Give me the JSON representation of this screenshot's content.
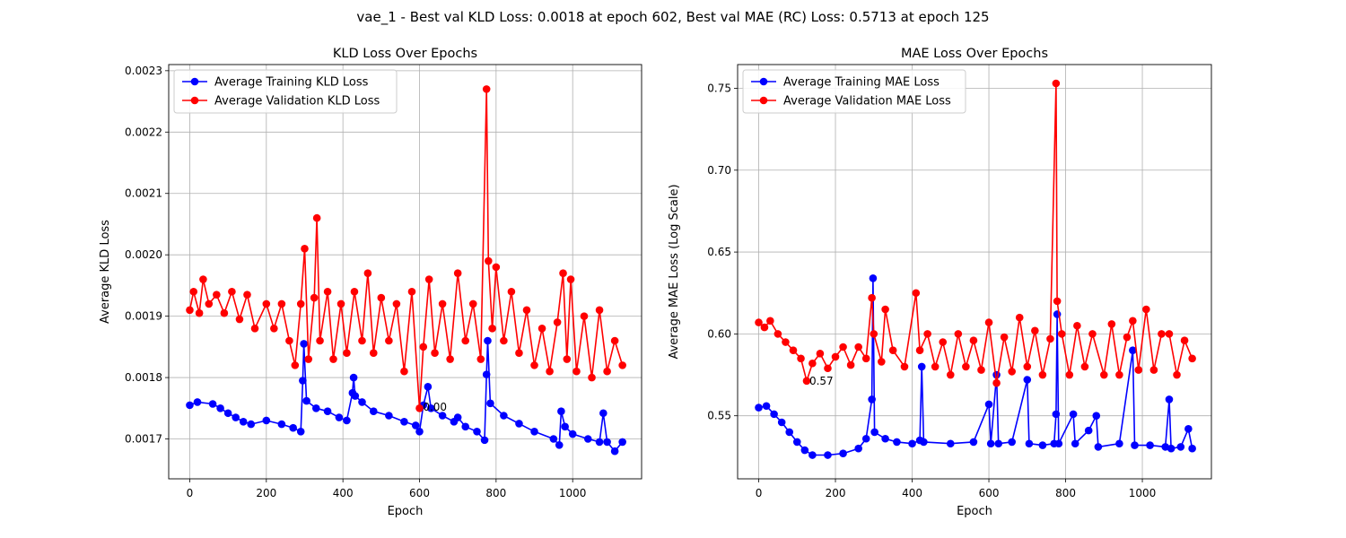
{
  "figure": {
    "suptitle": "vae_1 - Best val KLD Loss: 0.0018 at epoch 602, Best val MAE (RC) Loss: 0.5713 at epoch 125"
  },
  "chart_data": [
    {
      "type": "line",
      "title": "KLD Loss Over Epochs",
      "xlabel": "Epoch",
      "ylabel": "Average KLD Loss",
      "xlim": [
        -55,
        1180
      ],
      "ylim": [
        0.001635,
        0.00231
      ],
      "xticks": [
        0,
        200,
        400,
        600,
        800,
        1000
      ],
      "xtick_labels": [
        "0",
        "200",
        "400",
        "600",
        "800",
        "1000"
      ],
      "yticks": [
        0.0017,
        0.0018,
        0.0019,
        0.002,
        0.0021,
        0.0022,
        0.0023
      ],
      "ytick_labels": [
        "0.0017",
        "0.0018",
        "0.0019",
        "0.0020",
        "0.0021",
        "0.0022",
        "0.0023"
      ],
      "grid": true,
      "legend": "upper-left",
      "annotation": {
        "text": "0.00",
        "x": 602,
        "y": 0.001752
      },
      "series": [
        {
          "name": "Average Training KLD Loss",
          "color": "#0000ff",
          "marker": "circle",
          "points": [
            [
              0,
              0.001755
            ],
            [
              20,
              0.00176
            ],
            [
              60,
              0.001757
            ],
            [
              80,
              0.00175
            ],
            [
              100,
              0.001742
            ],
            [
              120,
              0.001735
            ],
            [
              140,
              0.001728
            ],
            [
              160,
              0.001724
            ],
            [
              200,
              0.00173
            ],
            [
              240,
              0.001724
            ],
            [
              270,
              0.001718
            ],
            [
              290,
              0.001712
            ],
            [
              295,
              0.001795
            ],
            [
              298,
              0.001855
            ],
            [
              305,
              0.001762
            ],
            [
              330,
              0.00175
            ],
            [
              360,
              0.001745
            ],
            [
              390,
              0.001735
            ],
            [
              410,
              0.00173
            ],
            [
              425,
              0.001775
            ],
            [
              428,
              0.0018
            ],
            [
              432,
              0.00177
            ],
            [
              450,
              0.00176
            ],
            [
              480,
              0.001745
            ],
            [
              520,
              0.001738
            ],
            [
              560,
              0.001728
            ],
            [
              590,
              0.001722
            ],
            [
              600,
              0.001712
            ],
            [
              610,
              0.001755
            ],
            [
              622,
              0.001785
            ],
            [
              630,
              0.00175
            ],
            [
              660,
              0.001738
            ],
            [
              690,
              0.001728
            ],
            [
              700,
              0.001735
            ],
            [
              720,
              0.00172
            ],
            [
              750,
              0.001712
            ],
            [
              770,
              0.001698
            ],
            [
              775,
              0.001805
            ],
            [
              778,
              0.00186
            ],
            [
              785,
              0.001758
            ],
            [
              820,
              0.001738
            ],
            [
              860,
              0.001725
            ],
            [
              900,
              0.001712
            ],
            [
              950,
              0.0017
            ],
            [
              965,
              0.00169
            ],
            [
              970,
              0.001745
            ],
            [
              980,
              0.00172
            ],
            [
              1000,
              0.001708
            ],
            [
              1040,
              0.0017
            ],
            [
              1070,
              0.001695
            ],
            [
              1080,
              0.001742
            ],
            [
              1090,
              0.001695
            ],
            [
              1110,
              0.00168
            ],
            [
              1130,
              0.001695
            ]
          ]
        },
        {
          "name": "Average Validation KLD Loss",
          "color": "#ff0000",
          "marker": "circle",
          "points": [
            [
              0,
              0.00191
            ],
            [
              10,
              0.00194
            ],
            [
              25,
              0.001905
            ],
            [
              35,
              0.00196
            ],
            [
              50,
              0.00192
            ],
            [
              70,
              0.001935
            ],
            [
              90,
              0.001905
            ],
            [
              110,
              0.00194
            ],
            [
              130,
              0.001895
            ],
            [
              150,
              0.001935
            ],
            [
              170,
              0.00188
            ],
            [
              200,
              0.00192
            ],
            [
              220,
              0.00188
            ],
            [
              240,
              0.00192
            ],
            [
              260,
              0.00186
            ],
            [
              275,
              0.00182
            ],
            [
              290,
              0.00192
            ],
            [
              300,
              0.00201
            ],
            [
              310,
              0.00183
            ],
            [
              325,
              0.00193
            ],
            [
              332,
              0.00206
            ],
            [
              340,
              0.00186
            ],
            [
              360,
              0.00194
            ],
            [
              375,
              0.00183
            ],
            [
              395,
              0.00192
            ],
            [
              410,
              0.00184
            ],
            [
              430,
              0.00194
            ],
            [
              450,
              0.00186
            ],
            [
              465,
              0.00197
            ],
            [
              480,
              0.00184
            ],
            [
              500,
              0.00193
            ],
            [
              520,
              0.00186
            ],
            [
              540,
              0.00192
            ],
            [
              560,
              0.00181
            ],
            [
              580,
              0.00194
            ],
            [
              600,
              0.00175
            ],
            [
              610,
              0.00185
            ],
            [
              625,
              0.00196
            ],
            [
              640,
              0.00184
            ],
            [
              660,
              0.00192
            ],
            [
              680,
              0.00183
            ],
            [
              700,
              0.00197
            ],
            [
              720,
              0.00186
            ],
            [
              740,
              0.00192
            ],
            [
              760,
              0.00183
            ],
            [
              775,
              0.00227
            ],
            [
              780,
              0.00199
            ],
            [
              790,
              0.00188
            ],
            [
              800,
              0.00198
            ],
            [
              820,
              0.00186
            ],
            [
              840,
              0.00194
            ],
            [
              860,
              0.00184
            ],
            [
              880,
              0.00191
            ],
            [
              900,
              0.00182
            ],
            [
              920,
              0.00188
            ],
            [
              940,
              0.00181
            ],
            [
              960,
              0.00189
            ],
            [
              975,
              0.00197
            ],
            [
              985,
              0.00183
            ],
            [
              995,
              0.00196
            ],
            [
              1010,
              0.00181
            ],
            [
              1030,
              0.0019
            ],
            [
              1050,
              0.0018
            ],
            [
              1070,
              0.00191
            ],
            [
              1090,
              0.00181
            ],
            [
              1110,
              0.00186
            ],
            [
              1130,
              0.00182
            ]
          ]
        }
      ]
    },
    {
      "type": "line",
      "title": "MAE Loss Over Epochs",
      "xlabel": "Epoch",
      "ylabel": "Average MAE Loss (Log Scale)",
      "xlim": [
        -55,
        1180
      ],
      "ylim": [
        0.5115,
        0.7645
      ],
      "xticks": [
        0,
        200,
        400,
        600,
        800,
        1000
      ],
      "xtick_labels": [
        "0",
        "200",
        "400",
        "600",
        "800",
        "1000"
      ],
      "yticks": [
        0.55,
        0.6,
        0.65,
        0.7,
        0.75
      ],
      "ytick_labels": [
        "0.55",
        "0.60",
        "0.65",
        "0.70",
        "0.75"
      ],
      "grid": true,
      "legend": "upper-left",
      "annotation": {
        "text": "0.57",
        "x": 125,
        "y": 0.5713
      },
      "series": [
        {
          "name": "Average Training MAE Loss",
          "color": "#0000ff",
          "marker": "circle",
          "points": [
            [
              0,
              0.555
            ],
            [
              20,
              0.556
            ],
            [
              40,
              0.551
            ],
            [
              60,
              0.546
            ],
            [
              80,
              0.54
            ],
            [
              100,
              0.534
            ],
            [
              120,
              0.529
            ],
            [
              140,
              0.526
            ],
            [
              180,
              0.526
            ],
            [
              220,
              0.527
            ],
            [
              260,
              0.53
            ],
            [
              280,
              0.536
            ],
            [
              295,
              0.56
            ],
            [
              298,
              0.634
            ],
            [
              302,
              0.54
            ],
            [
              330,
              0.536
            ],
            [
              360,
              0.534
            ],
            [
              400,
              0.533
            ],
            [
              420,
              0.535
            ],
            [
              425,
              0.58
            ],
            [
              430,
              0.534
            ],
            [
              500,
              0.533
            ],
            [
              560,
              0.534
            ],
            [
              600,
              0.557
            ],
            [
              605,
              0.533
            ],
            [
              620,
              0.575
            ],
            [
              625,
              0.533
            ],
            [
              660,
              0.534
            ],
            [
              700,
              0.572
            ],
            [
              705,
              0.533
            ],
            [
              740,
              0.532
            ],
            [
              770,
              0.533
            ],
            [
              775,
              0.551
            ],
            [
              778,
              0.612
            ],
            [
              782,
              0.533
            ],
            [
              820,
              0.551
            ],
            [
              825,
              0.533
            ],
            [
              860,
              0.541
            ],
            [
              880,
              0.55
            ],
            [
              885,
              0.531
            ],
            [
              940,
              0.533
            ],
            [
              975,
              0.59
            ],
            [
              980,
              0.532
            ],
            [
              1020,
              0.532
            ],
            [
              1060,
              0.531
            ],
            [
              1070,
              0.56
            ],
            [
              1075,
              0.53
            ],
            [
              1100,
              0.531
            ],
            [
              1120,
              0.542
            ],
            [
              1130,
              0.53
            ]
          ]
        },
        {
          "name": "Average Validation MAE Loss",
          "color": "#ff0000",
          "marker": "circle",
          "points": [
            [
              0,
              0.607
            ],
            [
              15,
              0.604
            ],
            [
              30,
              0.608
            ],
            [
              50,
              0.6
            ],
            [
              70,
              0.595
            ],
            [
              90,
              0.59
            ],
            [
              110,
              0.585
            ],
            [
              125,
              0.5713
            ],
            [
              140,
              0.582
            ],
            [
              160,
              0.588
            ],
            [
              180,
              0.579
            ],
            [
              200,
              0.586
            ],
            [
              220,
              0.592
            ],
            [
              240,
              0.581
            ],
            [
              260,
              0.592
            ],
            [
              280,
              0.585
            ],
            [
              295,
              0.622
            ],
            [
              300,
              0.6
            ],
            [
              320,
              0.583
            ],
            [
              330,
              0.615
            ],
            [
              350,
              0.59
            ],
            [
              380,
              0.58
            ],
            [
              410,
              0.625
            ],
            [
              420,
              0.59
            ],
            [
              440,
              0.6
            ],
            [
              460,
              0.58
            ],
            [
              480,
              0.595
            ],
            [
              500,
              0.575
            ],
            [
              520,
              0.6
            ],
            [
              540,
              0.58
            ],
            [
              560,
              0.596
            ],
            [
              580,
              0.578
            ],
            [
              600,
              0.607
            ],
            [
              620,
              0.57
            ],
            [
              640,
              0.598
            ],
            [
              660,
              0.577
            ],
            [
              680,
              0.61
            ],
            [
              700,
              0.58
            ],
            [
              720,
              0.602
            ],
            [
              740,
              0.575
            ],
            [
              760,
              0.597
            ],
            [
              775,
              0.753
            ],
            [
              778,
              0.62
            ],
            [
              790,
              0.6
            ],
            [
              810,
              0.575
            ],
            [
              830,
              0.605
            ],
            [
              850,
              0.58
            ],
            [
              870,
              0.6
            ],
            [
              900,
              0.575
            ],
            [
              920,
              0.606
            ],
            [
              940,
              0.575
            ],
            [
              960,
              0.598
            ],
            [
              975,
              0.608
            ],
            [
              990,
              0.578
            ],
            [
              1010,
              0.615
            ],
            [
              1030,
              0.578
            ],
            [
              1050,
              0.6
            ],
            [
              1070,
              0.6
            ],
            [
              1090,
              0.575
            ],
            [
              1110,
              0.596
            ],
            [
              1130,
              0.585
            ]
          ]
        }
      ]
    }
  ]
}
